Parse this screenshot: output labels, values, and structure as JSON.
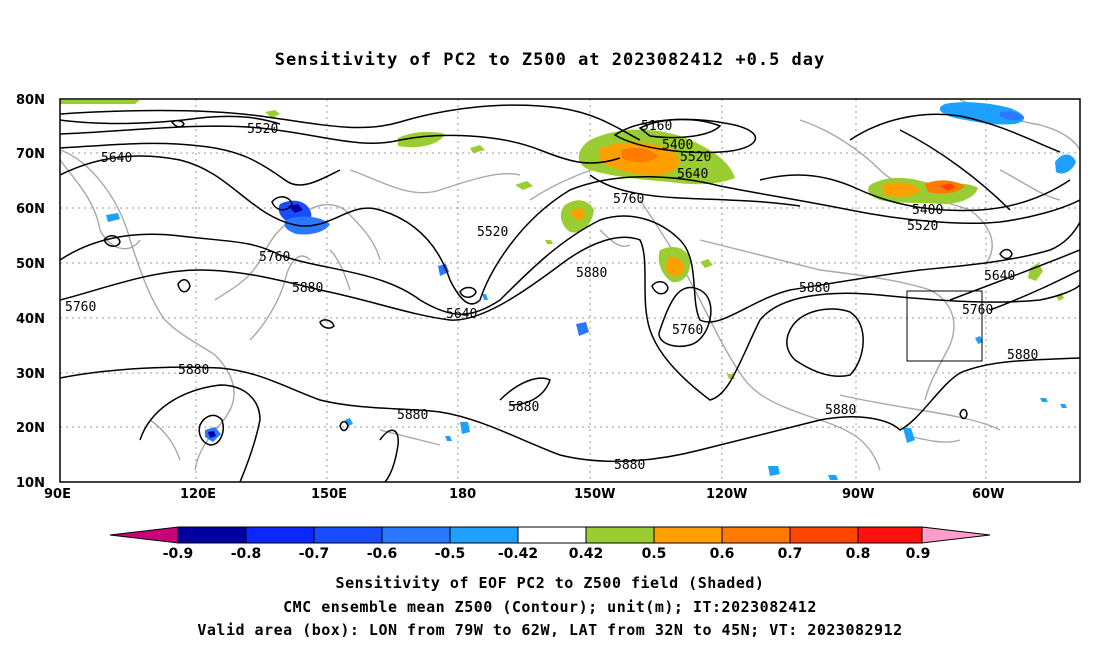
{
  "title": "Sensitivity of PC2 to Z500 at 2023082412 +0.5 day",
  "captions": [
    "Sensitivity of EOF PC2 to Z500 field (Shaded)",
    "CMC ensemble mean Z500 (Contour); unit(m); IT:2023082412",
    "Valid area (box): LON from 79W to 62W, LAT from 32N to 45N; VT: 2023082912"
  ],
  "lat_labels": [
    "80N",
    "70N",
    "60N",
    "50N",
    "40N",
    "30N",
    "20N",
    "10N"
  ],
  "lon_labels": [
    "90E",
    "120E",
    "150E",
    "180",
    "150W",
    "120W",
    "90W",
    "60W"
  ],
  "contour_labels": {
    "c5520a": "5520",
    "c5640a": "5640",
    "c5760a": "5760",
    "c5760b": "5760",
    "c5880a": "5880",
    "c5880b": "5880",
    "c5640b": "5640",
    "c5520b": "5520",
    "c5160": "5160",
    "c5400a": "5400",
    "c5520c": "5520",
    "c5640c": "5640",
    "c5760c": "5760",
    "c5880c": "5880",
    "c5880d": "5880",
    "c5760d": "5760",
    "c5880e": "5880",
    "c5880f": "5880",
    "c5400b": "5400",
    "c5520d": "5520",
    "c5640d": "5640",
    "c5760e": "5760",
    "c5880g": "5880",
    "c5880h": "5880"
  },
  "colorbar": {
    "labels": [
      "-0.9",
      "-0.8",
      "-0.7",
      "-0.6",
      "-0.5",
      "-0.42",
      "0.42",
      "0.5",
      "0.6",
      "0.7",
      "0.8",
      "0.9"
    ],
    "colors": [
      "#c8007a",
      "#0000a0",
      "#0a28ff",
      "#1a4cff",
      "#2a78ff",
      "#1ea0ff",
      "#00c8ff",
      "#ffffff",
      "#9acd32",
      "#ff9f00",
      "#ff7a00",
      "#ff4500",
      "#ff1010",
      "#ff9ec8"
    ]
  },
  "valid_box": {
    "lon_west": "79W",
    "lon_east": "62W",
    "lat_south": "32N",
    "lat_north": "45N"
  }
}
